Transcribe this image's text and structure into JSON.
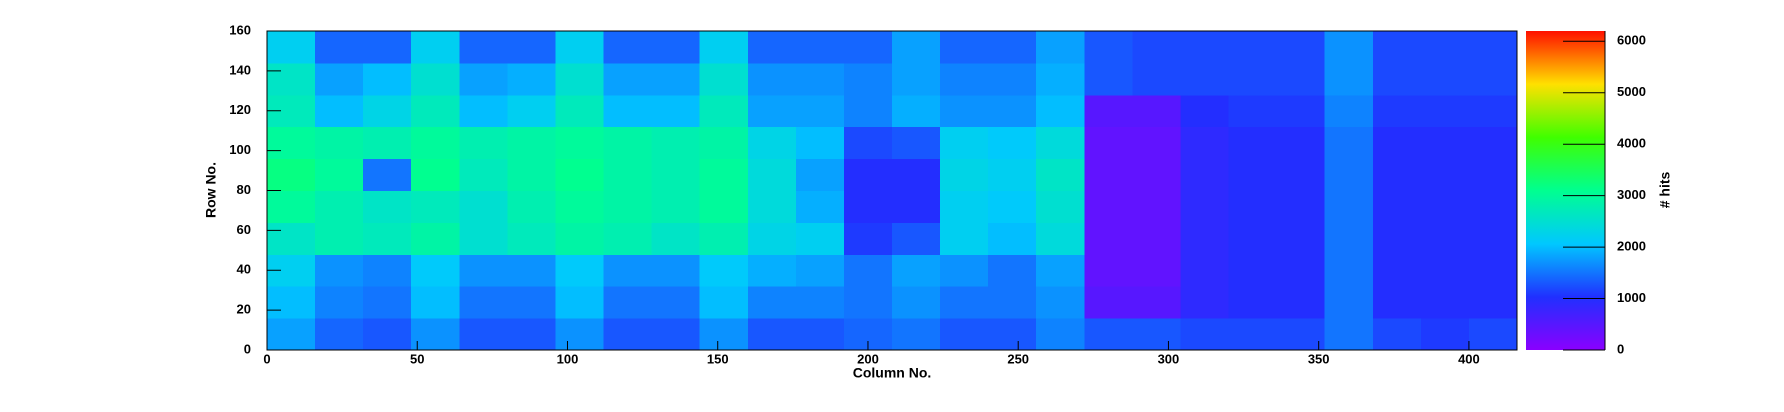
{
  "chart_data": {
    "type": "heatmap",
    "xlabel": "Column No.",
    "ylabel": "Row No.",
    "zlabel": "# hits",
    "x": [
      0,
      16,
      32,
      48,
      64,
      80,
      96,
      112,
      128,
      144,
      160,
      176,
      192,
      208,
      224,
      240,
      256,
      272,
      288,
      304,
      320,
      336,
      352,
      368,
      384,
      400,
      416
    ],
    "y": [
      0,
      16,
      32,
      48,
      64,
      80,
      96,
      112,
      128,
      144,
      160
    ],
    "z": [
      [
        1800,
        1400,
        1300,
        1700,
        1300,
        1300,
        1700,
        1300,
        1300,
        1700,
        1300,
        1300,
        1400,
        1500,
        1300,
        1300,
        1600,
        1300,
        1300,
        1200,
        1200,
        1200,
        1500,
        1200,
        1100,
        1200
      ],
      [
        2000,
        1600,
        1500,
        2000,
        1500,
        1500,
        2000,
        1500,
        1500,
        2000,
        1600,
        1600,
        1500,
        1700,
        1500,
        1500,
        1700,
        500,
        500,
        900,
        1000,
        1000,
        1500,
        1000,
        1000,
        1000
      ],
      [
        2200,
        1700,
        1600,
        2100,
        1700,
        1700,
        2100,
        1700,
        1700,
        2100,
        1900,
        1800,
        1500,
        1800,
        1700,
        1500,
        1800,
        400,
        400,
        900,
        1000,
        1000,
        1500,
        1000,
        1000,
        1000
      ],
      [
        2600,
        2800,
        2700,
        2900,
        2500,
        2700,
        2900,
        2800,
        2600,
        2800,
        2300,
        2200,
        1100,
        1300,
        2200,
        2000,
        2400,
        400,
        400,
        900,
        1000,
        1000,
        1500,
        1000,
        1000,
        1000
      ],
      [
        3000,
        2800,
        2600,
        2700,
        2500,
        2800,
        3000,
        2900,
        2800,
        3000,
        2400,
        1900,
        1000,
        1000,
        2200,
        2100,
        2500,
        400,
        400,
        900,
        1000,
        1000,
        1500,
        1000,
        1000,
        1000
      ],
      [
        3200,
        3000,
        1500,
        3100,
        2700,
        2900,
        3100,
        2900,
        2800,
        3000,
        2400,
        1800,
        1000,
        1000,
        2300,
        2200,
        2600,
        400,
        400,
        900,
        1000,
        1000,
        1500,
        1000,
        1000,
        1000
      ],
      [
        3000,
        2900,
        2800,
        3000,
        2800,
        2900,
        3000,
        2900,
        2800,
        2900,
        2300,
        2000,
        1200,
        1300,
        2200,
        2100,
        2400,
        400,
        400,
        900,
        1000,
        1000,
        1500,
        1000,
        1000,
        1000
      ],
      [
        2700,
        2000,
        2300,
        2700,
        2000,
        2200,
        2700,
        2000,
        2000,
        2700,
        1800,
        1800,
        1600,
        1900,
        1700,
        1700,
        2000,
        500,
        500,
        1000,
        1100,
        1100,
        1600,
        1100,
        1100,
        1100
      ],
      [
        2600,
        1800,
        2000,
        2500,
        1800,
        1900,
        2500,
        1800,
        1800,
        2500,
        1700,
        1700,
        1600,
        1800,
        1600,
        1600,
        1900,
        1300,
        1200,
        1200,
        1200,
        1200,
        1700,
        1200,
        1200,
        1200
      ],
      [
        2200,
        1400,
        1400,
        2200,
        1400,
        1400,
        2200,
        1400,
        1400,
        2200,
        1400,
        1400,
        1400,
        1800,
        1400,
        1400,
        1800,
        1300,
        1200,
        1200,
        1200,
        1200,
        1700,
        1200,
        1200,
        1200
      ]
    ],
    "xlim": [
      0,
      416
    ],
    "ylim": [
      0,
      160
    ],
    "zlim": [
      0,
      6200
    ],
    "xticks": [
      0,
      50,
      100,
      150,
      200,
      250,
      300,
      350,
      400
    ],
    "yticks": [
      0,
      20,
      40,
      60,
      80,
      100,
      120,
      140,
      160
    ],
    "zticks": [
      0,
      1000,
      2000,
      3000,
      4000,
      5000,
      6000
    ],
    "colorscale": [
      "#8a00ff",
      "#2030ff",
      "#00c8ff",
      "#00ff90",
      "#40ff00",
      "#ffe000",
      "#ff1000"
    ]
  }
}
